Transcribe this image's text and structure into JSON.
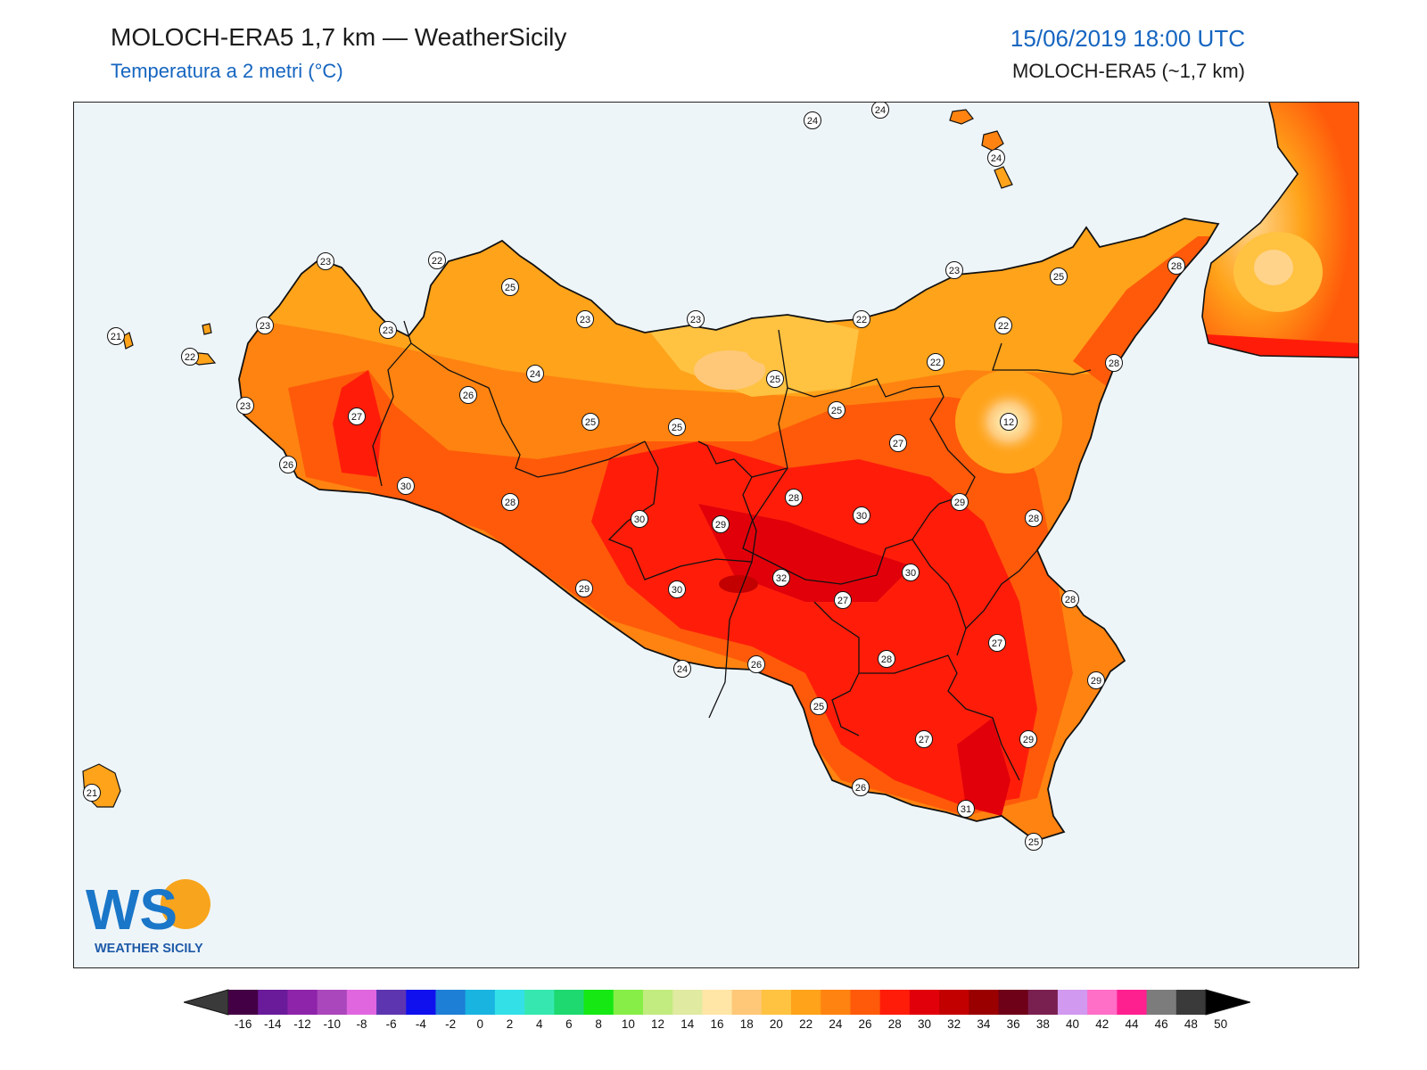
{
  "header": {
    "title": "MOLOCH-ERA5 1,7 km — WeatherSicily",
    "subtitle": "Temperatura a 2 metri (°C)",
    "datetime": "15/06/2019 18:00 UTC",
    "model": "MOLOCH-ERA5 (~1,7 km)"
  },
  "map": {
    "region": "Sicily",
    "sea_color": "#eef5f9",
    "station_values": [
      {
        "name": "north-island-1",
        "value": "24"
      },
      {
        "name": "north-island-2",
        "value": "24"
      },
      {
        "name": "eolie-island",
        "value": "24"
      },
      {
        "name": "egadi-west",
        "value": "21"
      },
      {
        "name": "egadi-levanzo",
        "value": "22"
      },
      {
        "name": "pantelleria",
        "value": "21"
      },
      {
        "name": "capo-san-vito",
        "value": "23"
      },
      {
        "name": "trapani-north",
        "value": "23"
      },
      {
        "name": "erice",
        "value": "23"
      },
      {
        "name": "marsala",
        "value": "23"
      },
      {
        "name": "mazara",
        "value": "26"
      },
      {
        "name": "salemi",
        "value": "27"
      },
      {
        "name": "castelvetrano",
        "value": "30"
      },
      {
        "name": "palermo-west",
        "value": "22"
      },
      {
        "name": "palermo",
        "value": "25"
      },
      {
        "name": "monreale",
        "value": "26"
      },
      {
        "name": "corleone",
        "value": "24"
      },
      {
        "name": "termini",
        "value": "23"
      },
      {
        "name": "cefalu",
        "value": "23"
      },
      {
        "name": "madonie",
        "value": "25"
      },
      {
        "name": "polizzi",
        "value": "25"
      },
      {
        "name": "nebrodi-west",
        "value": "25"
      },
      {
        "name": "sciacca-inland",
        "value": "28"
      },
      {
        "name": "santo-stefano",
        "value": "22"
      },
      {
        "name": "patti",
        "value": "23"
      },
      {
        "name": "milazzo",
        "value": "25"
      },
      {
        "name": "messina",
        "value": "28"
      },
      {
        "name": "nebrodi-east",
        "value": "22"
      },
      {
        "name": "randazzo",
        "value": "22"
      },
      {
        "name": "troina",
        "value": "25"
      },
      {
        "name": "etna",
        "value": "12"
      },
      {
        "name": "taormina",
        "value": "28"
      },
      {
        "name": "enna",
        "value": "27"
      },
      {
        "name": "caltanissetta-west",
        "value": "30"
      },
      {
        "name": "caltanissetta",
        "value": "29"
      },
      {
        "name": "piazza",
        "value": "28"
      },
      {
        "name": "caltagirone-north",
        "value": "30"
      },
      {
        "name": "paterno",
        "value": "29"
      },
      {
        "name": "acireale",
        "value": "28"
      },
      {
        "name": "agrigento-inland",
        "value": "29"
      },
      {
        "name": "canicatti",
        "value": "30"
      },
      {
        "name": "mazzarino",
        "value": "32"
      },
      {
        "name": "caltagirone",
        "value": "27"
      },
      {
        "name": "palagonia",
        "value": "30"
      },
      {
        "name": "catania",
        "value": "28"
      },
      {
        "name": "lentini",
        "value": "27"
      },
      {
        "name": "agrigento",
        "value": "24"
      },
      {
        "name": "licata",
        "value": "26"
      },
      {
        "name": "gela",
        "value": "25"
      },
      {
        "name": "vittoria",
        "value": "28"
      },
      {
        "name": "augusta",
        "value": "29"
      },
      {
        "name": "ragusa",
        "value": "27"
      },
      {
        "name": "noto",
        "value": "29"
      },
      {
        "name": "pozzallo",
        "value": "26"
      },
      {
        "name": "ispica",
        "value": "31"
      },
      {
        "name": "portopalo",
        "value": "25"
      }
    ]
  },
  "colorbar": {
    "colors": [
      "#440044",
      "#6a1b9a",
      "#8e24aa",
      "#ab47bc",
      "#e066e0",
      "#5e35b1",
      "#1010ee",
      "#1e7fd6",
      "#1ab4e0",
      "#33e0e8",
      "#36e8b0",
      "#1ed870",
      "#16e814",
      "#86ee46",
      "#c2ec80",
      "#e0eaa0",
      "#ffe5a6",
      "#fec878",
      "#ffc241",
      "#ffa31a",
      "#ff8310",
      "#ff5a0a",
      "#ff1d0a",
      "#e1000a",
      "#c30000",
      "#9a0000",
      "#6e0018",
      "#7a2050",
      "#d299f0",
      "#ff6ec7",
      "#ff2090",
      "#7c7c7c",
      "#3a3a3a"
    ],
    "labels": [
      "-16",
      "-14",
      "-12",
      "-10",
      "-8",
      "-6",
      "-4",
      "-2",
      "0",
      "2",
      "4",
      "6",
      "8",
      "10",
      "12",
      "14",
      "16",
      "18",
      "20",
      "22",
      "24",
      "26",
      "28",
      "30",
      "32",
      "34",
      "36",
      "38",
      "40",
      "42",
      "44",
      "46",
      "48",
      "50"
    ]
  },
  "logo": {
    "letters": "WS",
    "text": "WEATHER SICILY"
  }
}
